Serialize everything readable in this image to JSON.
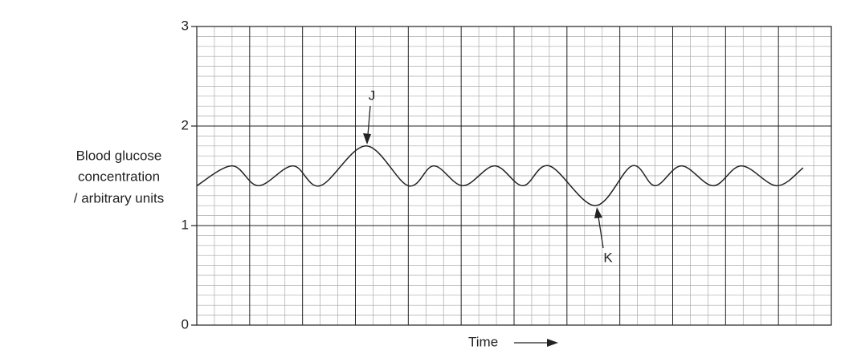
{
  "chart_data": {
    "type": "line",
    "x_label": "Time",
    "y_label": [
      "Blood glucose",
      "concentration",
      "/ arbitrary units"
    ],
    "x": [
      0,
      2,
      3.5,
      5.45,
      7,
      9.6,
      12,
      13.45,
      15.1,
      16.9,
      18.5,
      20,
      22.6,
      24.7,
      26,
      27.5,
      29.3,
      30.9,
      32.9,
      34.4
    ],
    "series": [
      {
        "color": "#222222",
        "values": [
          1.4,
          1.6,
          1.4,
          1.6,
          1.4,
          1.8,
          1.4,
          1.6,
          1.4,
          1.6,
          1.4,
          1.6,
          1.2,
          1.6,
          1.4,
          1.6,
          1.4,
          1.6,
          1.4,
          1.58
        ]
      }
    ],
    "annotations": [
      "J",
      "K"
    ],
    "xlim": [
      0,
      36
    ],
    "ylim": [
      0,
      3
    ],
    "yticks": [
      0,
      1,
      2,
      3
    ],
    "grid": true
  }
}
